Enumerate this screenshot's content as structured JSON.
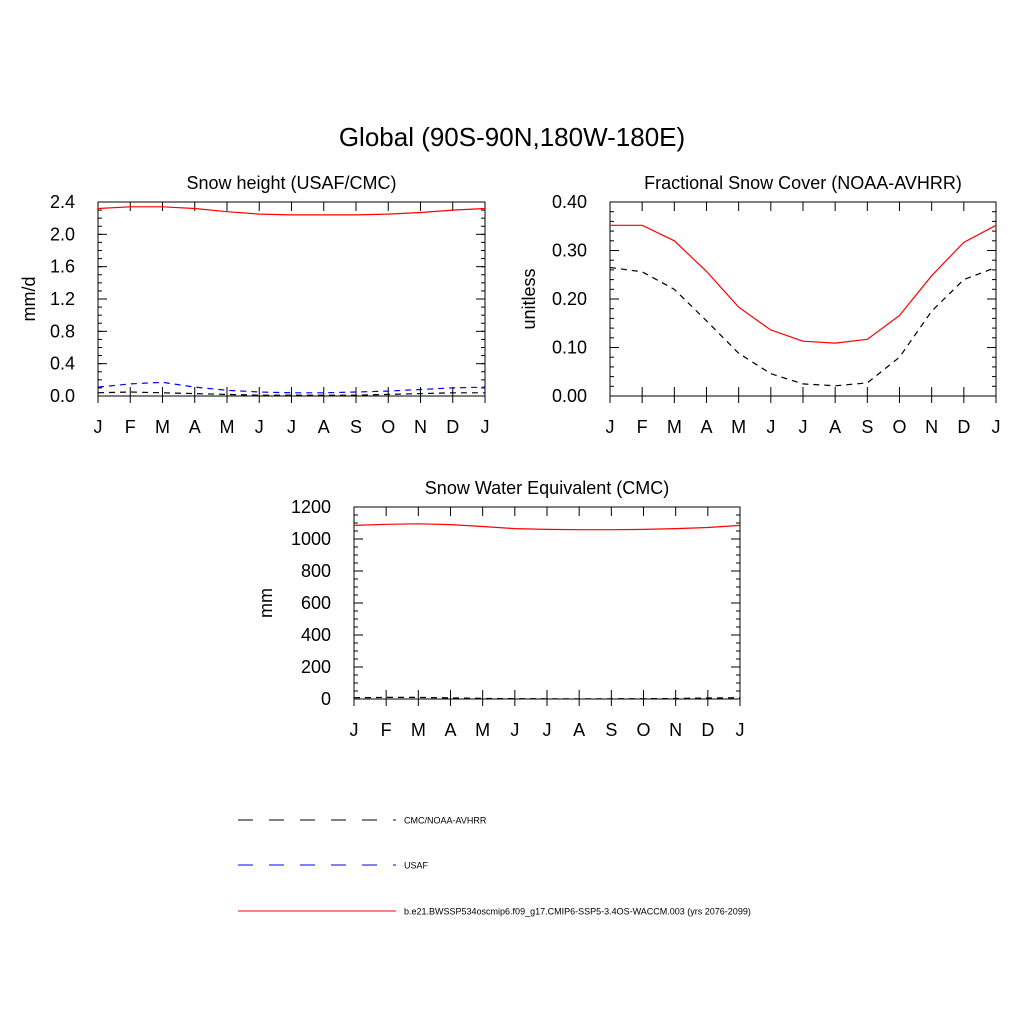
{
  "page": {
    "title": "Global (90S-90N,180W-180E)"
  },
  "months": [
    "J",
    "F",
    "M",
    "A",
    "M",
    "J",
    "J",
    "A",
    "S",
    "O",
    "N",
    "D",
    "J"
  ],
  "series_styles": [
    {
      "key": "obs",
      "color": "#000000",
      "dash": "dashed"
    },
    {
      "key": "usaf",
      "color": "#0000ff",
      "dash": "dashed"
    },
    {
      "key": "model",
      "color": "#ff0000",
      "dash": "solid"
    }
  ],
  "chart_data": [
    {
      "id": "snow-height",
      "type": "line",
      "title": "Snow height (USAF/CMC)",
      "ylabel": "mm/d",
      "xlabel": "",
      "ylim": [
        0,
        2.4
      ],
      "yticks": [
        "0.0",
        "0.4",
        "0.8",
        "1.2",
        "1.6",
        "2.0",
        "2.4"
      ],
      "minor_step": 0.1,
      "series": [
        {
          "key": "model",
          "values": [
            2.32,
            2.34,
            2.34,
            2.32,
            2.28,
            2.25,
            2.24,
            2.24,
            2.24,
            2.25,
            2.27,
            2.3,
            2.32
          ]
        },
        {
          "key": "usaf",
          "values": [
            0.11,
            0.15,
            0.17,
            0.11,
            0.07,
            0.05,
            0.04,
            0.04,
            0.05,
            0.06,
            0.08,
            0.1,
            0.11
          ]
        },
        {
          "key": "obs",
          "values": [
            0.04,
            0.05,
            0.04,
            0.03,
            0.02,
            0.01,
            0.01,
            0.01,
            0.01,
            0.02,
            0.03,
            0.04,
            0.04
          ]
        }
      ]
    },
    {
      "id": "frac-snow-cover",
      "type": "line",
      "title": "Fractional Snow Cover (NOAA-AVHRR)",
      "ylabel": "unitless",
      "xlabel": "",
      "ylim": [
        0,
        0.4
      ],
      "yticks": [
        "0.00",
        "0.10",
        "0.20",
        "0.30",
        "0.40"
      ],
      "minor_step": 0.02,
      "series": [
        {
          "key": "model",
          "values": [
            0.352,
            0.352,
            0.32,
            0.257,
            0.183,
            0.136,
            0.113,
            0.109,
            0.117,
            0.166,
            0.248,
            0.317,
            0.352
          ]
        },
        {
          "key": "obs",
          "values": [
            0.265,
            0.256,
            0.22,
            0.155,
            0.088,
            0.046,
            0.025,
            0.021,
            0.027,
            0.08,
            0.175,
            0.24,
            0.265
          ]
        }
      ]
    },
    {
      "id": "swe",
      "type": "line",
      "title": "Snow Water Equivalent (CMC)",
      "ylabel": "mm",
      "xlabel": "",
      "ylim": [
        0,
        1200
      ],
      "yticks": [
        "0",
        "200",
        "400",
        "600",
        "800",
        "1000",
        "1200"
      ],
      "minor_step": 50,
      "series": [
        {
          "key": "model",
          "values": [
            1085,
            1092,
            1095,
            1090,
            1078,
            1065,
            1060,
            1058,
            1058,
            1060,
            1065,
            1072,
            1085
          ]
        },
        {
          "key": "obs",
          "values": [
            8,
            10,
            10,
            7,
            4,
            2,
            1,
            1,
            1,
            2,
            3,
            6,
            8
          ]
        }
      ]
    }
  ],
  "legend": [
    {
      "key": "obs",
      "label": "CMC/NOAA-AVHRR"
    },
    {
      "key": "usaf",
      "label": "USAF"
    },
    {
      "key": "model",
      "label": "b.e21.BWSSP534oscmip6.f09_g17.CMIP6-SSP5-3.4OS-WACCM.003 (yrs 2076-2099)"
    }
  ]
}
